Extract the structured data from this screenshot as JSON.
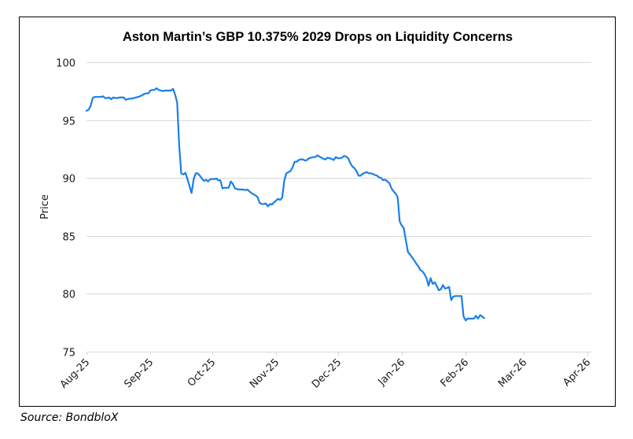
{
  "chart_data": {
    "type": "line",
    "title": "Aston Martin’s GBP 10.375% 2029 Drops on Liquidity Concerns",
    "xlabel": "",
    "ylabel": "Price",
    "ylim": [
      75,
      100
    ],
    "yticks": [
      75,
      80,
      85,
      90,
      95,
      100
    ],
    "ytick_labels": [
      "75",
      "80",
      "85",
      "90",
      "95",
      "100"
    ],
    "grid": true,
    "legend": "none",
    "x_start_date": "2025-08-01",
    "xticks": [
      {
        "label": "Aug-25",
        "day": 0
      },
      {
        "label": "Sep-25",
        "day": 31
      },
      {
        "label": "Oct-25",
        "day": 61
      },
      {
        "label": "Nov-25",
        "day": 92
      },
      {
        "label": "Dec-25",
        "day": 122
      },
      {
        "label": "Jan-26",
        "day": 153
      },
      {
        "label": "Feb-26",
        "day": 184
      },
      {
        "label": "Mar-26",
        "day": 212
      },
      {
        "label": "Apr-26",
        "day": 243
      }
    ],
    "series": [
      {
        "name": "GBP 10.375% 2029",
        "color": "#1a7fe8",
        "points": [
          [
            0,
            95.8
          ],
          [
            1,
            95.9
          ],
          [
            2,
            96.2
          ],
          [
            3,
            96.9
          ],
          [
            4,
            97.0
          ],
          [
            5,
            97.0
          ],
          [
            6,
            97.0
          ],
          [
            7,
            97.0
          ],
          [
            8,
            97.05
          ],
          [
            9,
            96.9
          ],
          [
            10,
            96.9
          ],
          [
            11,
            96.95
          ],
          [
            12,
            96.8
          ],
          [
            13,
            96.95
          ],
          [
            14,
            96.9
          ],
          [
            15,
            96.9
          ],
          [
            16,
            96.95
          ],
          [
            17,
            96.95
          ],
          [
            18,
            96.95
          ],
          [
            19,
            96.75
          ],
          [
            20,
            96.8
          ],
          [
            21,
            96.85
          ],
          [
            22,
            96.85
          ],
          [
            23,
            96.9
          ],
          [
            24,
            96.95
          ],
          [
            25,
            97.0
          ],
          [
            26,
            97.05
          ],
          [
            27,
            97.15
          ],
          [
            28,
            97.25
          ],
          [
            29,
            97.3
          ],
          [
            30,
            97.3
          ],
          [
            31,
            97.55
          ],
          [
            32,
            97.6
          ],
          [
            33,
            97.6
          ],
          [
            34,
            97.75
          ],
          [
            35,
            97.6
          ],
          [
            36,
            97.55
          ],
          [
            37,
            97.5
          ],
          [
            38,
            97.55
          ],
          [
            39,
            97.55
          ],
          [
            40,
            97.55
          ],
          [
            41,
            97.55
          ],
          [
            42,
            97.7
          ],
          [
            43,
            97.2
          ],
          [
            44,
            96.5
          ],
          [
            45,
            92.8
          ],
          [
            46,
            90.4
          ],
          [
            47,
            90.3
          ],
          [
            48,
            90.45
          ],
          [
            49,
            89.9
          ],
          [
            50,
            89.3
          ],
          [
            51,
            88.7
          ],
          [
            52,
            89.9
          ],
          [
            53,
            90.4
          ],
          [
            54,
            90.4
          ],
          [
            55,
            90.2
          ],
          [
            56,
            89.95
          ],
          [
            57,
            89.75
          ],
          [
            58,
            89.85
          ],
          [
            59,
            89.7
          ],
          [
            60,
            89.9
          ],
          [
            61,
            89.9
          ],
          [
            62,
            89.9
          ],
          [
            63,
            89.95
          ],
          [
            64,
            89.8
          ],
          [
            65,
            89.8
          ],
          [
            66,
            89.1
          ],
          [
            67,
            89.15
          ],
          [
            68,
            89.15
          ],
          [
            69,
            89.15
          ],
          [
            70,
            89.7
          ],
          [
            71,
            89.5
          ],
          [
            72,
            89.1
          ],
          [
            73,
            89.05
          ],
          [
            74,
            89.0
          ],
          [
            75,
            89.0
          ],
          [
            76,
            89.0
          ],
          [
            77,
            88.95
          ],
          [
            78,
            89.0
          ],
          [
            79,
            88.85
          ],
          [
            80,
            88.7
          ],
          [
            81,
            88.6
          ],
          [
            82,
            88.5
          ],
          [
            83,
            88.35
          ],
          [
            84,
            87.85
          ],
          [
            85,
            87.75
          ],
          [
            86,
            87.75
          ],
          [
            87,
            87.8
          ],
          [
            88,
            87.55
          ],
          [
            89,
            87.75
          ],
          [
            90,
            87.7
          ],
          [
            91,
            87.9
          ],
          [
            92,
            88.05
          ],
          [
            93,
            88.2
          ],
          [
            94,
            88.1
          ],
          [
            95,
            88.3
          ],
          [
            96,
            89.8
          ],
          [
            97,
            90.4
          ],
          [
            98,
            90.5
          ],
          [
            99,
            90.6
          ],
          [
            100,
            90.9
          ],
          [
            101,
            91.4
          ],
          [
            102,
            91.4
          ],
          [
            103,
            91.55
          ],
          [
            104,
            91.6
          ],
          [
            105,
            91.6
          ],
          [
            106,
            91.5
          ],
          [
            107,
            91.55
          ],
          [
            108,
            91.7
          ],
          [
            109,
            91.75
          ],
          [
            110,
            91.8
          ],
          [
            111,
            91.8
          ],
          [
            112,
            91.95
          ],
          [
            113,
            91.85
          ],
          [
            114,
            91.75
          ],
          [
            115,
            91.65
          ],
          [
            116,
            91.6
          ],
          [
            117,
            91.75
          ],
          [
            118,
            91.7
          ],
          [
            119,
            91.65
          ],
          [
            120,
            91.55
          ],
          [
            121,
            91.8
          ],
          [
            122,
            91.7
          ],
          [
            123,
            91.7
          ],
          [
            124,
            91.75
          ],
          [
            125,
            91.9
          ],
          [
            126,
            91.85
          ],
          [
            127,
            91.7
          ],
          [
            128,
            91.3
          ],
          [
            129,
            91.0
          ],
          [
            130,
            90.85
          ],
          [
            131,
            90.6
          ],
          [
            132,
            90.2
          ],
          [
            133,
            90.2
          ],
          [
            134,
            90.35
          ],
          [
            135,
            90.45
          ],
          [
            136,
            90.5
          ],
          [
            137,
            90.4
          ],
          [
            138,
            90.4
          ],
          [
            139,
            90.35
          ],
          [
            140,
            90.25
          ],
          [
            141,
            90.2
          ],
          [
            142,
            90.05
          ],
          [
            143,
            90.0
          ],
          [
            144,
            89.8
          ],
          [
            145,
            89.85
          ],
          [
            146,
            89.7
          ],
          [
            147,
            89.55
          ],
          [
            148,
            89.1
          ],
          [
            149,
            88.85
          ],
          [
            150,
            88.65
          ],
          [
            151,
            88.35
          ],
          [
            152,
            86.25
          ],
          [
            153,
            85.9
          ],
          [
            154,
            85.65
          ],
          [
            155,
            84.6
          ],
          [
            156,
            83.6
          ],
          [
            157,
            83.4
          ],
          [
            158,
            83.15
          ],
          [
            159,
            82.9
          ],
          [
            160,
            82.6
          ],
          [
            161,
            82.4
          ],
          [
            162,
            82.05
          ],
          [
            163,
            81.95
          ],
          [
            164,
            81.7
          ],
          [
            165,
            81.35
          ],
          [
            166,
            80.7
          ],
          [
            167,
            81.35
          ],
          [
            168,
            80.85
          ],
          [
            169,
            81.0
          ],
          [
            170,
            80.65
          ],
          [
            171,
            80.3
          ],
          [
            172,
            80.4
          ],
          [
            173,
            80.75
          ],
          [
            174,
            80.45
          ],
          [
            175,
            80.5
          ],
          [
            176,
            80.6
          ],
          [
            177,
            79.45
          ],
          [
            178,
            79.75
          ],
          [
            179,
            79.8
          ],
          [
            180,
            79.8
          ],
          [
            181,
            79.8
          ],
          [
            182,
            79.8
          ],
          [
            183,
            78.05
          ],
          [
            184,
            77.7
          ],
          [
            185,
            77.85
          ],
          [
            186,
            77.85
          ],
          [
            187,
            77.85
          ],
          [
            188,
            77.85
          ],
          [
            189,
            78.1
          ],
          [
            190,
            77.85
          ],
          [
            191,
            78.15
          ],
          [
            192,
            78.05
          ],
          [
            193,
            77.9
          ]
        ]
      }
    ]
  },
  "source_note": "Source: BondbloX"
}
